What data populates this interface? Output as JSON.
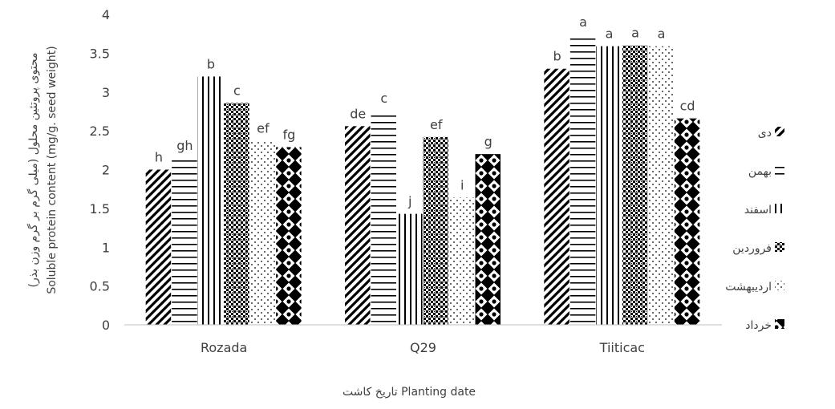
{
  "chart_data": {
    "type": "bar",
    "categories": [
      "Rozada",
      "Q29",
      "Tiiticac"
    ],
    "series": [
      {
        "name": "دی",
        "pattern": "diagonal",
        "values": [
          2.0,
          2.56,
          3.3
        ],
        "letters": [
          "h",
          "de",
          "b"
        ]
      },
      {
        "name": "بهمن",
        "pattern": "horizontal",
        "values": [
          2.15,
          2.76,
          3.74
        ],
        "letters": [
          "gh",
          "c",
          "a"
        ]
      },
      {
        "name": "اسفند",
        "pattern": "vertical",
        "values": [
          3.2,
          1.43,
          3.59
        ],
        "letters": [
          "b",
          "j",
          "a"
        ]
      },
      {
        "name": "فروردین",
        "pattern": "checker",
        "values": [
          2.86,
          2.42,
          3.6
        ],
        "letters": [
          "c",
          "ef",
          "a"
        ]
      },
      {
        "name": "اردیبهشت",
        "pattern": "dots",
        "values": [
          2.37,
          1.64,
          3.59
        ],
        "letters": [
          "ef",
          "i",
          "a"
        ]
      },
      {
        "name": "خرداد",
        "pattern": "diamonds",
        "values": [
          2.29,
          2.2,
          2.66
        ],
        "letters": [
          "fg",
          "g",
          "cd"
        ]
      }
    ],
    "ylim": [
      0,
      4
    ],
    "yticks": [
      "0",
      "0.5",
      "1",
      "1.5",
      "2",
      "2.5",
      "3",
      "3.5",
      "4"
    ],
    "ylabel_line1": "محتوی پروتئین محلول (میلی گرم بر گرم وزن بذر)",
    "ylabel_line2": "Soluble protein content (mg/g. seed weight)",
    "xlabel": "تاریخ کاشت Planting date",
    "legend_position": "right",
    "grid": false,
    "colors": {
      "bar_ink": "#000000",
      "axis": "#bfbfbf",
      "text": "#404040"
    }
  }
}
